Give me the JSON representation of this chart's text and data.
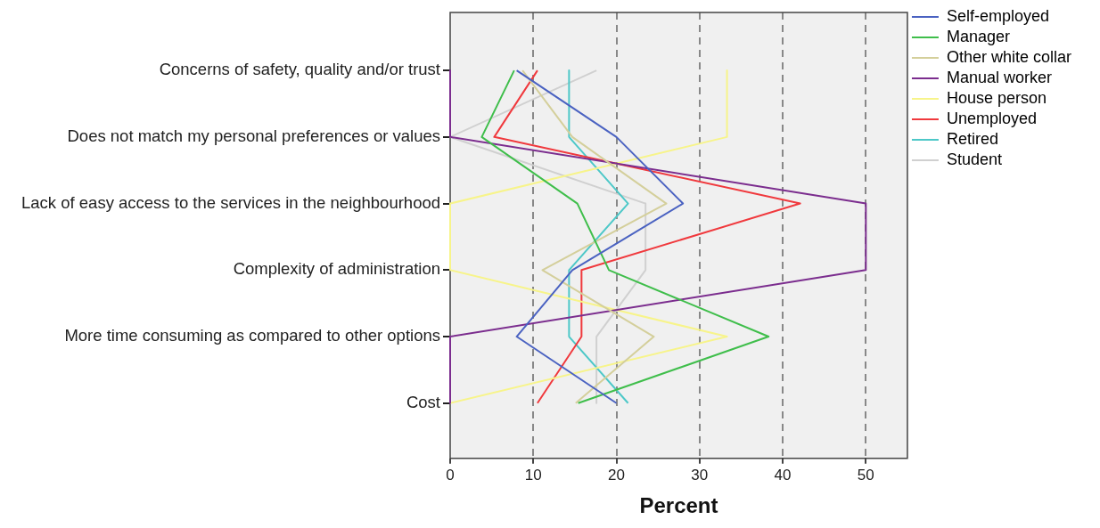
{
  "chart_data": {
    "type": "line",
    "orientation": "horizontal",
    "xlabel": "Percent",
    "categories": [
      "Concerns of safety, quality and/or trust",
      "Does not match my personal preferences or values",
      "Lack of easy access to the services in the neighbourhood",
      "Complexity of administration",
      "More time consuming as compared to other options",
      "Cost"
    ],
    "series": [
      {
        "name": "Self-employed",
        "color": "#4a62c1",
        "values": [
          8.0,
          20.0,
          28.0,
          14.7,
          8.0,
          20.0
        ]
      },
      {
        "name": "Manager",
        "color": "#3fbe4b",
        "values": [
          7.7,
          3.8,
          15.3,
          19.1,
          38.3,
          15.4
        ]
      },
      {
        "name": "Other white collar",
        "color": "#d4cf9b",
        "values": [
          8.7,
          14.7,
          26.0,
          11.1,
          24.5,
          15.1
        ]
      },
      {
        "name": "Manual worker",
        "color": "#7b2d8e",
        "values": [
          0,
          0,
          50,
          50,
          0,
          0
        ]
      },
      {
        "name": "House person",
        "color": "#f7f48a",
        "values": [
          33.3,
          33.3,
          0,
          0,
          33.3,
          0
        ]
      },
      {
        "name": "Unemployed",
        "color": "#f0393d",
        "values": [
          10.5,
          5.3,
          42.1,
          15.8,
          15.8,
          10.5
        ]
      },
      {
        "name": "Retired",
        "color": "#4dc8c8",
        "values": [
          14.3,
          14.3,
          21.4,
          14.3,
          14.3,
          21.4
        ]
      },
      {
        "name": "Student",
        "color": "#d0d0d0",
        "values": [
          17.6,
          0,
          23.5,
          23.5,
          17.6,
          17.6
        ]
      }
    ],
    "xlim": [
      0,
      55
    ],
    "xticks": [
      0,
      10,
      20,
      30,
      40,
      50
    ],
    "grid": "x",
    "legend": "right",
    "marker": "none",
    "line_style": "solid"
  }
}
